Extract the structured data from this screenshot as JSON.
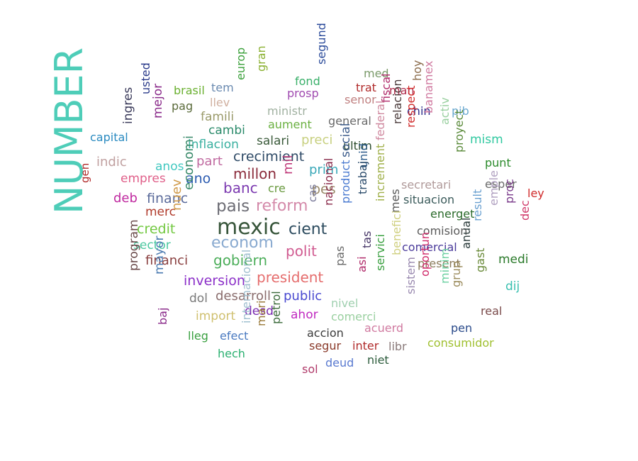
{
  "words": [
    {
      "text": "NUMBER",
      "color": "#4ecdb8",
      "vertical": true
    },
    {
      "text": "mexic",
      "color": "#37553a"
    },
    {
      "text": "pais",
      "color": "#6d6d75"
    },
    {
      "text": "reform",
      "color": "#d48aaa"
    },
    {
      "text": "econom",
      "color": "#88a9cf"
    },
    {
      "text": "cient",
      "color": "#2c4b5e"
    },
    {
      "text": "gobiern",
      "color": "#4cae5a"
    },
    {
      "text": "banc",
      "color": "#7b39b0"
    },
    {
      "text": "millon",
      "color": "#8a2a3a"
    },
    {
      "text": "crecimient",
      "color": "#2e4a66"
    },
    {
      "text": "polit",
      "color": "#d05a90"
    },
    {
      "text": "president",
      "color": "#e56d6d"
    },
    {
      "text": "inversion",
      "color": "#8b2fc8"
    },
    {
      "text": "desarroll",
      "color": "#8a6d6d"
    },
    {
      "text": "public",
      "color": "#4a4ad0"
    },
    {
      "text": "financ",
      "color": "#5a6a9a"
    },
    {
      "text": "credit",
      "color": "#72c840"
    },
    {
      "text": "sector",
      "color": "#4cc8a0"
    },
    {
      "text": "financi",
      "color": "#8a4040"
    },
    {
      "text": "merc",
      "color": "#b03a2a"
    },
    {
      "text": "deb",
      "color": "#c02aa0"
    },
    {
      "text": "empres",
      "color": "#e0608a"
    },
    {
      "text": "anos",
      "color": "#40c8c0"
    },
    {
      "text": "ano",
      "color": "#2a5ab0"
    },
    {
      "text": "part",
      "color": "#c06aa0"
    },
    {
      "text": "cre",
      "color": "#6a9a40"
    },
    {
      "text": "pes",
      "color": "#9a8a6a"
    },
    {
      "text": "prim",
      "color": "#3aa8b8"
    },
    {
      "text": "inflacion",
      "color": "#3ab0a0"
    },
    {
      "text": "cambi",
      "color": "#2a8a6a"
    },
    {
      "text": "salari",
      "color": "#3a5a3a"
    },
    {
      "text": "preci",
      "color": "#c8d080"
    },
    {
      "text": "ultim",
      "color": "#2a4a2a"
    },
    {
      "text": "aument",
      "color": "#6ab040"
    },
    {
      "text": "ministr",
      "color": "#a0b0a0"
    },
    {
      "text": "famili",
      "color": "#9a9a6a"
    },
    {
      "text": "general",
      "color": "#6a6a6a"
    },
    {
      "text": "llev",
      "color": "#d0b0a0"
    },
    {
      "text": "pag",
      "color": "#5a6a3a"
    },
    {
      "text": "brasil",
      "color": "#6ab030"
    },
    {
      "text": "tem",
      "color": "#6a8ab0"
    },
    {
      "text": "fond",
      "color": "#3ab06a"
    },
    {
      "text": "prosp",
      "color": "#a04ab0"
    },
    {
      "text": "senor",
      "color": "#c08080"
    },
    {
      "text": "trat",
      "color": "#b02a2a"
    },
    {
      "text": "med",
      "color": "#7a9a6a"
    },
    {
      "text": "man",
      "color": "#b02a4a"
    },
    {
      "text": "chin",
      "color": "#2a2a8a"
    },
    {
      "text": "pib",
      "color": "#6aa8d0"
    },
    {
      "text": "mism",
      "color": "#30c8a0"
    },
    {
      "text": "punt",
      "color": "#2a8a2a"
    },
    {
      "text": "esper",
      "color": "#6a6a6a"
    },
    {
      "text": "ley",
      "color": "#d02a2a"
    },
    {
      "text": "capital",
      "color": "#2a8ac0"
    },
    {
      "text": "indic",
      "color": "#c0a0a0"
    },
    {
      "text": "secretari",
      "color": "#b09a9a"
    },
    {
      "text": "situacion",
      "color": "#3a5a5a"
    },
    {
      "text": "energet",
      "color": "#2a6a2a"
    },
    {
      "text": "comision",
      "color": "#5a5a5a"
    },
    {
      "text": "comercial",
      "color": "#4a3a9a"
    },
    {
      "text": "present",
      "color": "#8a7a5a"
    },
    {
      "text": "medi",
      "color": "#2a7a2a"
    },
    {
      "text": "dij",
      "color": "#3ac0b0"
    },
    {
      "text": "real",
      "color": "#7a4a4a"
    },
    {
      "text": "pen",
      "color": "#2a4a8a"
    },
    {
      "text": "consumidor",
      "color": "#a0c030"
    },
    {
      "text": "acuerd",
      "color": "#d07aa0"
    },
    {
      "text": "comerci",
      "color": "#9ad0a0"
    },
    {
      "text": "nivel",
      "color": "#a0d0b0"
    },
    {
      "text": "ahor",
      "color": "#c02ac0"
    },
    {
      "text": "desd",
      "color": "#7a2ab0"
    },
    {
      "text": "import",
      "color": "#d0c070"
    },
    {
      "text": "dol",
      "color": "#7a7a7a"
    },
    {
      "text": "efect",
      "color": "#4a7ac0"
    },
    {
      "text": "lleg",
      "color": "#3aa040"
    },
    {
      "text": "hech",
      "color": "#2ab070"
    },
    {
      "text": "accion",
      "color": "#3a3a3a"
    },
    {
      "text": "segur",
      "color": "#8a3a2a"
    },
    {
      "text": "inter",
      "color": "#b02a2a"
    },
    {
      "text": "libr",
      "color": "#8a7a7a"
    },
    {
      "text": "sol",
      "color": "#b03a6a"
    },
    {
      "text": "deud",
      "color": "#5a7ad0"
    },
    {
      "text": "niet",
      "color": "#2a5a3a"
    },
    {
      "text": "gen",
      "color": "#b02a2a",
      "vertical": true
    },
    {
      "text": "ingres",
      "color": "#3a3a5a",
      "vertical": true
    },
    {
      "text": "usted",
      "color": "#2a3a8a",
      "vertical": true
    },
    {
      "text": "mejor",
      "color": "#8a2a8a",
      "vertical": true
    },
    {
      "text": "europ",
      "color": "#3aa03a",
      "vertical": true
    },
    {
      "text": "gran",
      "color": "#8ab030",
      "vertical": true
    },
    {
      "text": "segund",
      "color": "#2a4a9a",
      "vertical": true
    },
    {
      "text": "fiscal",
      "color": "#b02a6a",
      "vertical": true
    },
    {
      "text": "hoy",
      "color": "#8a6a4a",
      "vertical": true
    },
    {
      "text": "banamex",
      "color": "#d07aa0",
      "vertical": true
    },
    {
      "text": "activ",
      "color": "#9ad0a0",
      "vertical": true
    },
    {
      "text": "proyect",
      "color": "#5a8a3a",
      "vertical": true
    },
    {
      "text": "relacion",
      "color": "#4a3a3a",
      "vertical": true
    },
    {
      "text": "respect",
      "color": "#d02a2a",
      "vertical": true
    },
    {
      "text": "federal",
      "color": "#d08aa0",
      "vertical": true
    },
    {
      "text": "social",
      "color": "#3a5a8a",
      "vertical": true
    },
    {
      "text": "unid",
      "color": "#2a5a8a",
      "vertical": true
    },
    {
      "text": "trabaj",
      "color": "#2a4a6a",
      "vertical": true
    },
    {
      "text": "product",
      "color": "#4a7ad0",
      "vertical": true
    },
    {
      "text": "nacional",
      "color": "#8a2a4a",
      "vertical": true
    },
    {
      "text": "cas",
      "color": "#7a7a9a",
      "vertical": true
    },
    {
      "text": "mil",
      "color": "#c03a7a",
      "vertical": true
    },
    {
      "text": "economi",
      "color": "#3a8a6a",
      "vertical": true
    },
    {
      "text": "nuev",
      "color": "#d09a4a",
      "vertical": true
    },
    {
      "text": "increment",
      "color": "#a0b04a",
      "vertical": true
    },
    {
      "text": "mes",
      "color": "#5a5a5a",
      "vertical": true
    },
    {
      "text": "tas",
      "color": "#4a3a6a",
      "vertical": true
    },
    {
      "text": "pas",
      "color": "#6a6a6a",
      "vertical": true
    },
    {
      "text": "asi",
      "color": "#b02a6a",
      "vertical": true
    },
    {
      "text": "servici",
      "color": "#3aa040",
      "vertical": true
    },
    {
      "text": "benefici",
      "color": "#d0d080",
      "vertical": true
    },
    {
      "text": "sistem",
      "color": "#9a8ab0",
      "vertical": true
    },
    {
      "text": "oportun",
      "color": "#d02a6a",
      "vertical": true
    },
    {
      "text": "minim",
      "color": "#6ad0a0",
      "vertical": true
    },
    {
      "text": "grup",
      "color": "#9a8a5a",
      "vertical": true
    },
    {
      "text": "anual",
      "color": "#2a3a3a",
      "vertical": true
    },
    {
      "text": "gast",
      "color": "#6a8a3a",
      "vertical": true
    },
    {
      "text": "result",
      "color": "#6aa0d0",
      "vertical": true
    },
    {
      "text": "emple",
      "color": "#b0a0c0",
      "vertical": true
    },
    {
      "text": "proc",
      "color": "#7a3a8a",
      "vertical": true
    },
    {
      "text": "dec",
      "color": "#d03a6a",
      "vertical": true
    },
    {
      "text": "program",
      "color": "#6a4a4a",
      "vertical": true
    },
    {
      "text": "mayor",
      "color": "#4a7ab0",
      "vertical": true
    },
    {
      "text": "baj",
      "color": "#8a2a8a",
      "vertical": true
    },
    {
      "text": "mari",
      "color": "#9a7a3a",
      "vertical": true
    },
    {
      "text": "internacional",
      "color": "#a0c0d0",
      "vertical": true
    },
    {
      "text": "petrol",
      "color": "#3a6a3a",
      "vertical": true
    }
  ]
}
